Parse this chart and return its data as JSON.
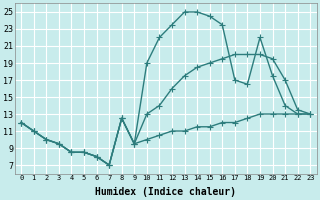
{
  "xlabel": "Humidex (Indice chaleur)",
  "background_color": "#c8ecec",
  "grid_color": "#ffffff",
  "line_color": "#2d7d7d",
  "xlim": [
    -0.5,
    23.5
  ],
  "ylim": [
    6,
    26
  ],
  "xticks": [
    0,
    1,
    2,
    3,
    4,
    5,
    6,
    7,
    8,
    9,
    10,
    11,
    12,
    13,
    14,
    15,
    16,
    17,
    18,
    19,
    20,
    21,
    22,
    23
  ],
  "yticks": [
    7,
    9,
    11,
    13,
    15,
    17,
    19,
    21,
    23,
    25
  ],
  "line1_x": [
    0,
    1,
    2,
    3,
    4,
    5,
    6,
    7,
    8,
    9,
    10,
    11,
    12,
    13,
    14,
    15,
    16,
    17,
    18,
    19,
    20,
    21,
    22,
    23
  ],
  "line1_y": [
    12,
    11,
    10,
    9.5,
    8.5,
    8.5,
    8,
    7,
    12.5,
    9.5,
    10,
    10.5,
    11,
    11,
    11.5,
    11.5,
    12,
    12,
    12.5,
    13,
    13,
    13,
    13,
    13
  ],
  "line2_x": [
    0,
    1,
    2,
    3,
    4,
    5,
    6,
    7,
    8,
    9,
    10,
    11,
    12,
    13,
    14,
    15,
    16,
    17,
    18,
    19,
    20,
    21,
    22,
    23
  ],
  "line2_y": [
    12,
    11,
    10,
    9.5,
    8.5,
    8.5,
    8,
    7,
    12.5,
    9.5,
    13,
    14,
    16,
    17.5,
    18.5,
    19,
    19.5,
    20,
    20,
    20,
    19.5,
    17,
    13.5,
    13
  ],
  "line3_x": [
    0,
    1,
    2,
    3,
    4,
    5,
    6,
    7,
    8,
    9,
    10,
    11,
    12,
    13,
    14,
    15,
    16,
    17,
    18,
    19,
    20,
    21,
    22,
    23
  ],
  "line3_y": [
    12,
    11,
    10,
    9.5,
    8.5,
    8.5,
    8,
    7,
    12.5,
    9.5,
    19,
    22,
    23.5,
    25,
    25,
    24.5,
    23.5,
    17,
    16.5,
    22,
    17.5,
    14,
    13,
    13
  ],
  "markersize": 2.5,
  "linewidth": 1.0
}
